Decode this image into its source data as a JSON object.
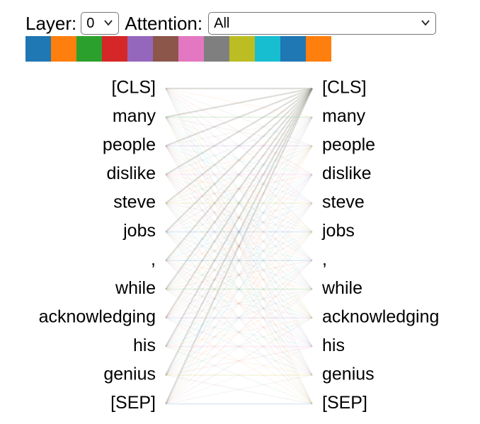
{
  "controls": {
    "layer_label": "Layer:",
    "layer_value": "0",
    "attention_label": "Attention:",
    "attention_value": "All"
  },
  "head_colors": [
    "#1f77b4",
    "#ff7f0e",
    "#2ca02c",
    "#d62728",
    "#9467bd",
    "#8c564b",
    "#e377c2",
    "#7f7f7f",
    "#bcbd22",
    "#17becf",
    "#1f77b4",
    "#ff7f0e"
  ],
  "tokens": [
    "[CLS]",
    "many",
    "people",
    "dislike",
    "steve",
    "jobs",
    ",",
    "while",
    "acknowledging",
    "his",
    "genius",
    "[SEP]"
  ]
}
